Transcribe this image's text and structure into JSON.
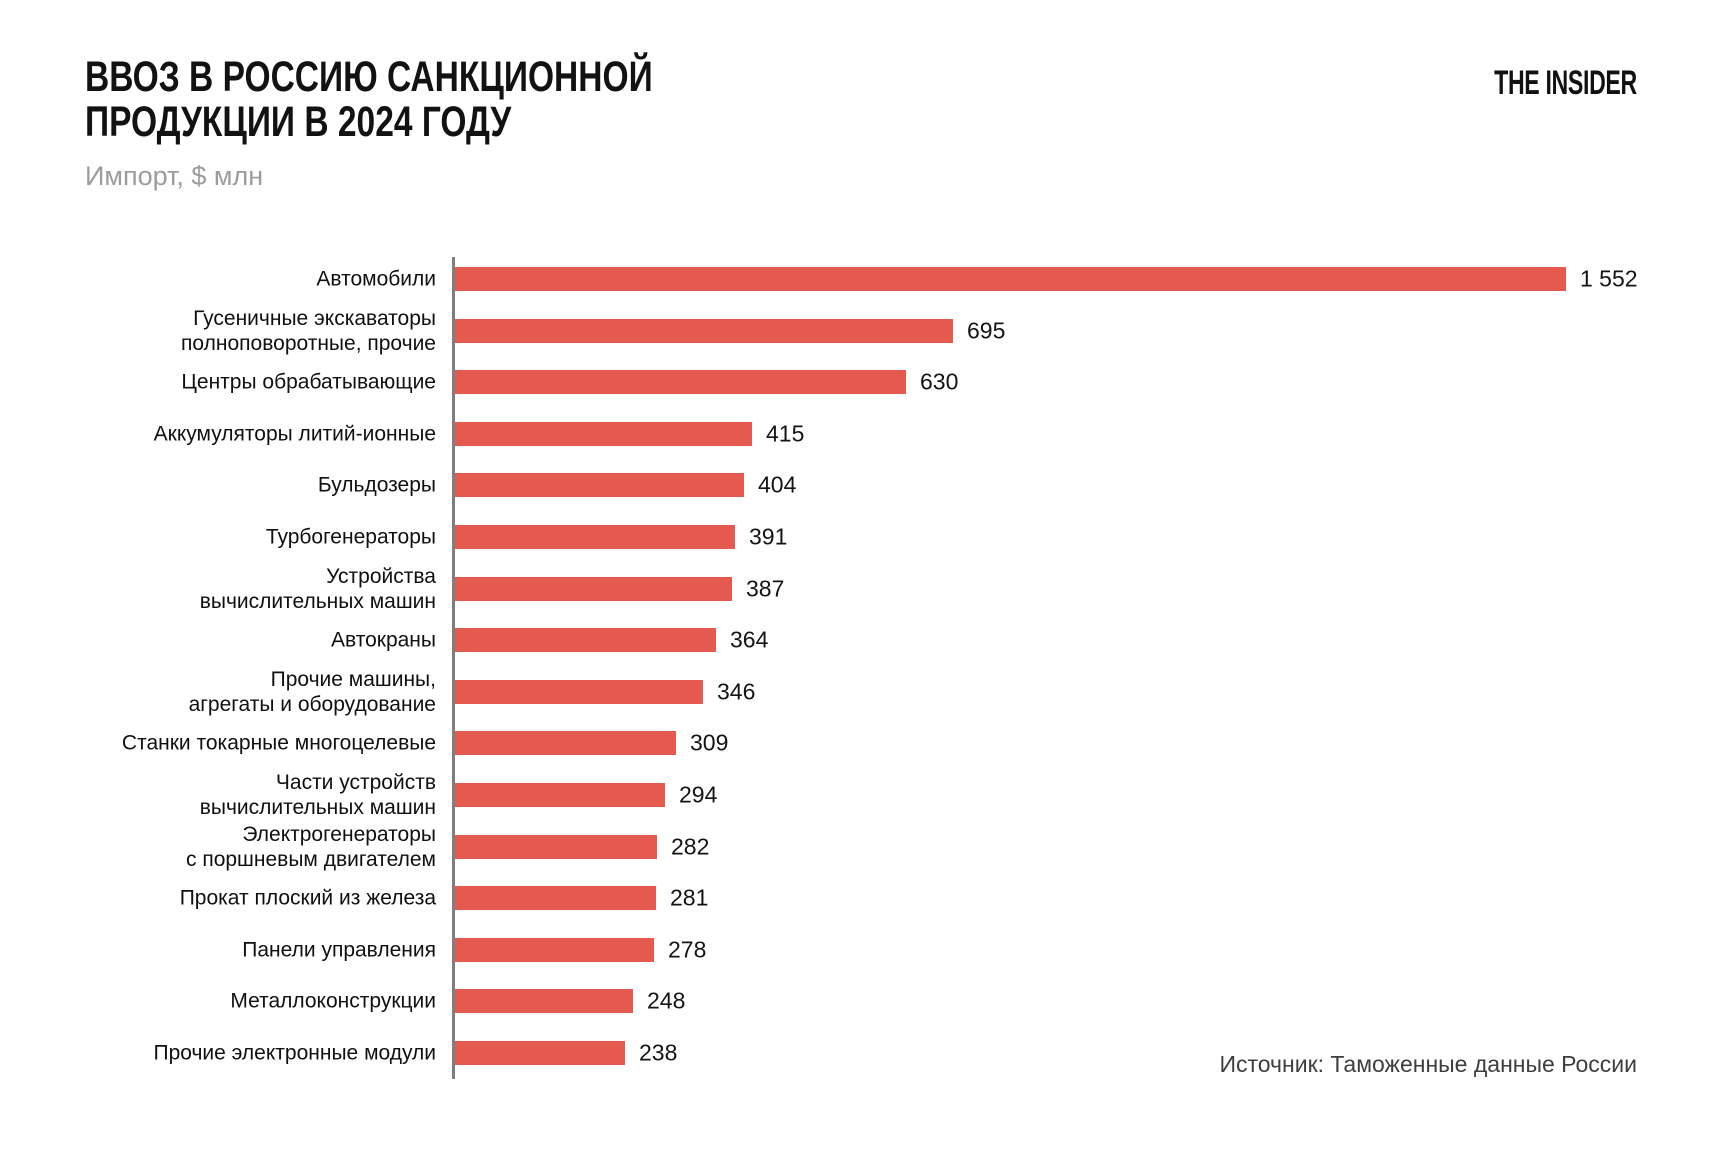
{
  "header": {
    "title": "ВВОЗ В РОССИЮ САНКЦИОННОЙ\nПРОДУКЦИИ В 2024 ГОДУ",
    "subtitle": "Импорт, $ млн",
    "brand": "THE INSIDER"
  },
  "footer": {
    "source": "Источник: Таможенные данные России"
  },
  "chart_data": {
    "type": "bar",
    "orientation": "horizontal",
    "title": "ВВОЗ В РОССИЮ САНКЦИОННОЙ ПРОДУКЦИИ В 2024 ГОДУ",
    "subtitle_unit": "Импорт, $ млн",
    "bar_color": "#E45A4F",
    "axis_color": "#7F7F7F",
    "grid": false,
    "legend": false,
    "xlim": [
      0,
      1650
    ],
    "categories": [
      "Автомобили",
      "Гусеничные экскаваторы\nполноповоротные, прочие",
      "Центры обрабатывающие",
      "Аккумуляторы литий-ионные",
      "Бульдозеры",
      "Турбогенераторы",
      "Устройства\nвычислительных машин",
      "Автокраны",
      "Прочие машины,\nагрегаты и оборудование",
      "Станки токарные многоцелевые",
      "Части устройств\nвычислительных машин",
      "Электрогенераторы\nс поршневым двигателем",
      "Прокат плоский из железа",
      "Панели управления",
      "Металлоконструкции",
      "Прочие электронные модули"
    ],
    "values": [
      1552,
      695,
      630,
      415,
      404,
      391,
      387,
      364,
      346,
      309,
      294,
      282,
      281,
      278,
      248,
      238
    ],
    "value_labels": [
      "1 552",
      "695",
      "630",
      "415",
      "404",
      "391",
      "387",
      "364",
      "346",
      "309",
      "294",
      "282",
      "281",
      "278",
      "248",
      "238"
    ]
  }
}
